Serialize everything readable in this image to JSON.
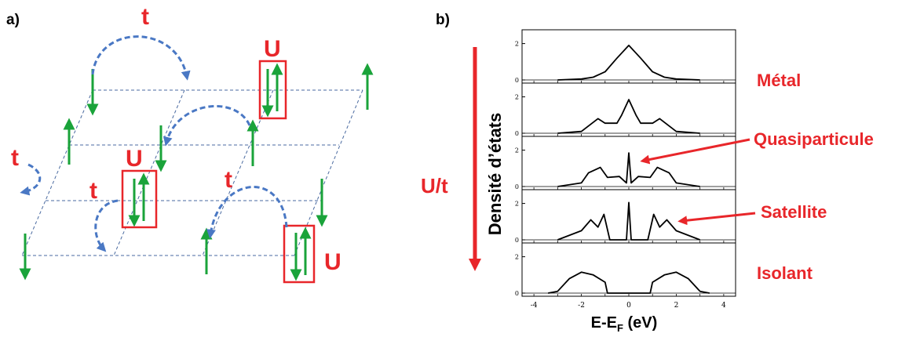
{
  "panel_a": {
    "label": "a)",
    "hopping_label": "t",
    "interaction_label": "U",
    "colors": {
      "spin": "#1aa33a",
      "hop": "#4a78c4",
      "highlight": "#e8262a",
      "lattice": "#4a6aa0"
    }
  },
  "panel_b": {
    "label": "b)",
    "ylabel": "Densité d’états",
    "xlabel": "E-E",
    "xlabel_sub": "F",
    "xlabel_unit": " (eV)",
    "arrow_label": "U/t",
    "x_ticks": [
      "-4",
      "-2",
      "0",
      "2",
      "4"
    ],
    "y_tick_top": "2",
    "y_tick_zero": "0",
    "annotations": {
      "metal": "Métal",
      "quasiparticle": "Quasiparticule",
      "satellite": "Satellite",
      "insulator": "Isolant"
    },
    "colors": {
      "annotation": "#e8262a",
      "curve": "#000000"
    }
  },
  "chart_data": {
    "type": "line",
    "xlabel": "E-EF (eV)",
    "ylabel": "Densité d’états",
    "xlim": [
      -4.5,
      4.5
    ],
    "panels": [
      {
        "label": "Métal",
        "x": [
          -3,
          -2,
          -1.5,
          -1,
          -0.5,
          0,
          0.5,
          1,
          1.5,
          2,
          3
        ],
        "y": [
          0,
          0.05,
          0.15,
          0.45,
          1.2,
          1.9,
          1.2,
          0.45,
          0.15,
          0.05,
          0
        ]
      },
      {
        "label": "",
        "x": [
          -3,
          -2,
          -1.3,
          -1,
          -0.5,
          -0.3,
          0,
          0.3,
          0.5,
          1,
          1.3,
          2,
          3
        ],
        "y": [
          0,
          0.1,
          0.8,
          0.55,
          0.55,
          1.0,
          1.85,
          1.0,
          0.55,
          0.55,
          0.8,
          0.1,
          0
        ]
      },
      {
        "label": "Quasiparticule",
        "x": [
          -3,
          -2,
          -1.7,
          -1.2,
          -0.9,
          -0.4,
          -0.1,
          0,
          0.1,
          0.4,
          0.9,
          1.2,
          1.7,
          2,
          3
        ],
        "y": [
          0,
          0.2,
          0.75,
          1.05,
          0.5,
          0.55,
          0.2,
          1.85,
          0.2,
          0.55,
          0.5,
          1.05,
          0.75,
          0.2,
          0
        ]
      },
      {
        "label": "Satellite",
        "x": [
          -3,
          -2,
          -1.6,
          -1.3,
          -1.05,
          -0.8,
          -0.1,
          0,
          0.1,
          0.8,
          1.05,
          1.3,
          1.6,
          2,
          3
        ],
        "y": [
          0,
          0.5,
          1.1,
          0.7,
          1.4,
          0,
          0,
          2.05,
          0,
          0,
          1.4,
          0.7,
          1.1,
          0.5,
          0
        ]
      },
      {
        "label": "Isolant",
        "x": [
          -3.4,
          -3,
          -2.5,
          -2,
          -1.5,
          -1,
          -0.9,
          0.9,
          1,
          1.5,
          2,
          2.5,
          3,
          3.4
        ],
        "y": [
          0,
          0.1,
          0.8,
          1.15,
          1.0,
          0.6,
          0,
          0,
          0.6,
          1.0,
          1.15,
          0.8,
          0.1,
          0
        ]
      }
    ],
    "ylim": [
      0,
      2.5
    ]
  }
}
